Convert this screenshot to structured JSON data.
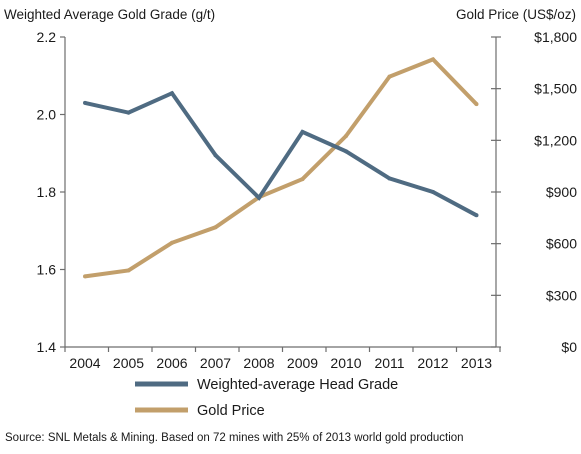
{
  "chart_data": {
    "type": "line",
    "x": [
      "2004",
      "2005",
      "2006",
      "2007",
      "2008",
      "2009",
      "2010",
      "2011",
      "2012",
      "2013"
    ],
    "series": [
      {
        "name": "Weighted-average Head Grade",
        "axis": "left",
        "color": "#4f6b82",
        "values": [
          2.03,
          2.005,
          2.055,
          1.895,
          1.785,
          1.955,
          1.905,
          1.835,
          1.8,
          1.74
        ]
      },
      {
        "name": "Gold Price",
        "axis": "right",
        "color": "#c29f6b",
        "values": [
          410,
          445,
          605,
          695,
          870,
          975,
          1225,
          1570,
          1670,
          1410
        ]
      }
    ],
    "ylabel_left": "Weighted Average Gold Grade (g/t)",
    "ylabel_right": "Gold Price (US$/oz)",
    "ylim_left": [
      1.4,
      2.2
    ],
    "ylim_right": [
      0,
      1800
    ],
    "yticks_left": [
      "1.4",
      "1.6",
      "1.8",
      "2.0",
      "2.2"
    ],
    "yticks_right": [
      "$0",
      "$300",
      "$600",
      "$900",
      "$1,200",
      "$1,500",
      "$1,800"
    ],
    "grid": false,
    "legend": "bottom-center",
    "source": "Source: SNL Metals & Mining. Based on 72 mines with 25% of 2013 world gold production"
  }
}
